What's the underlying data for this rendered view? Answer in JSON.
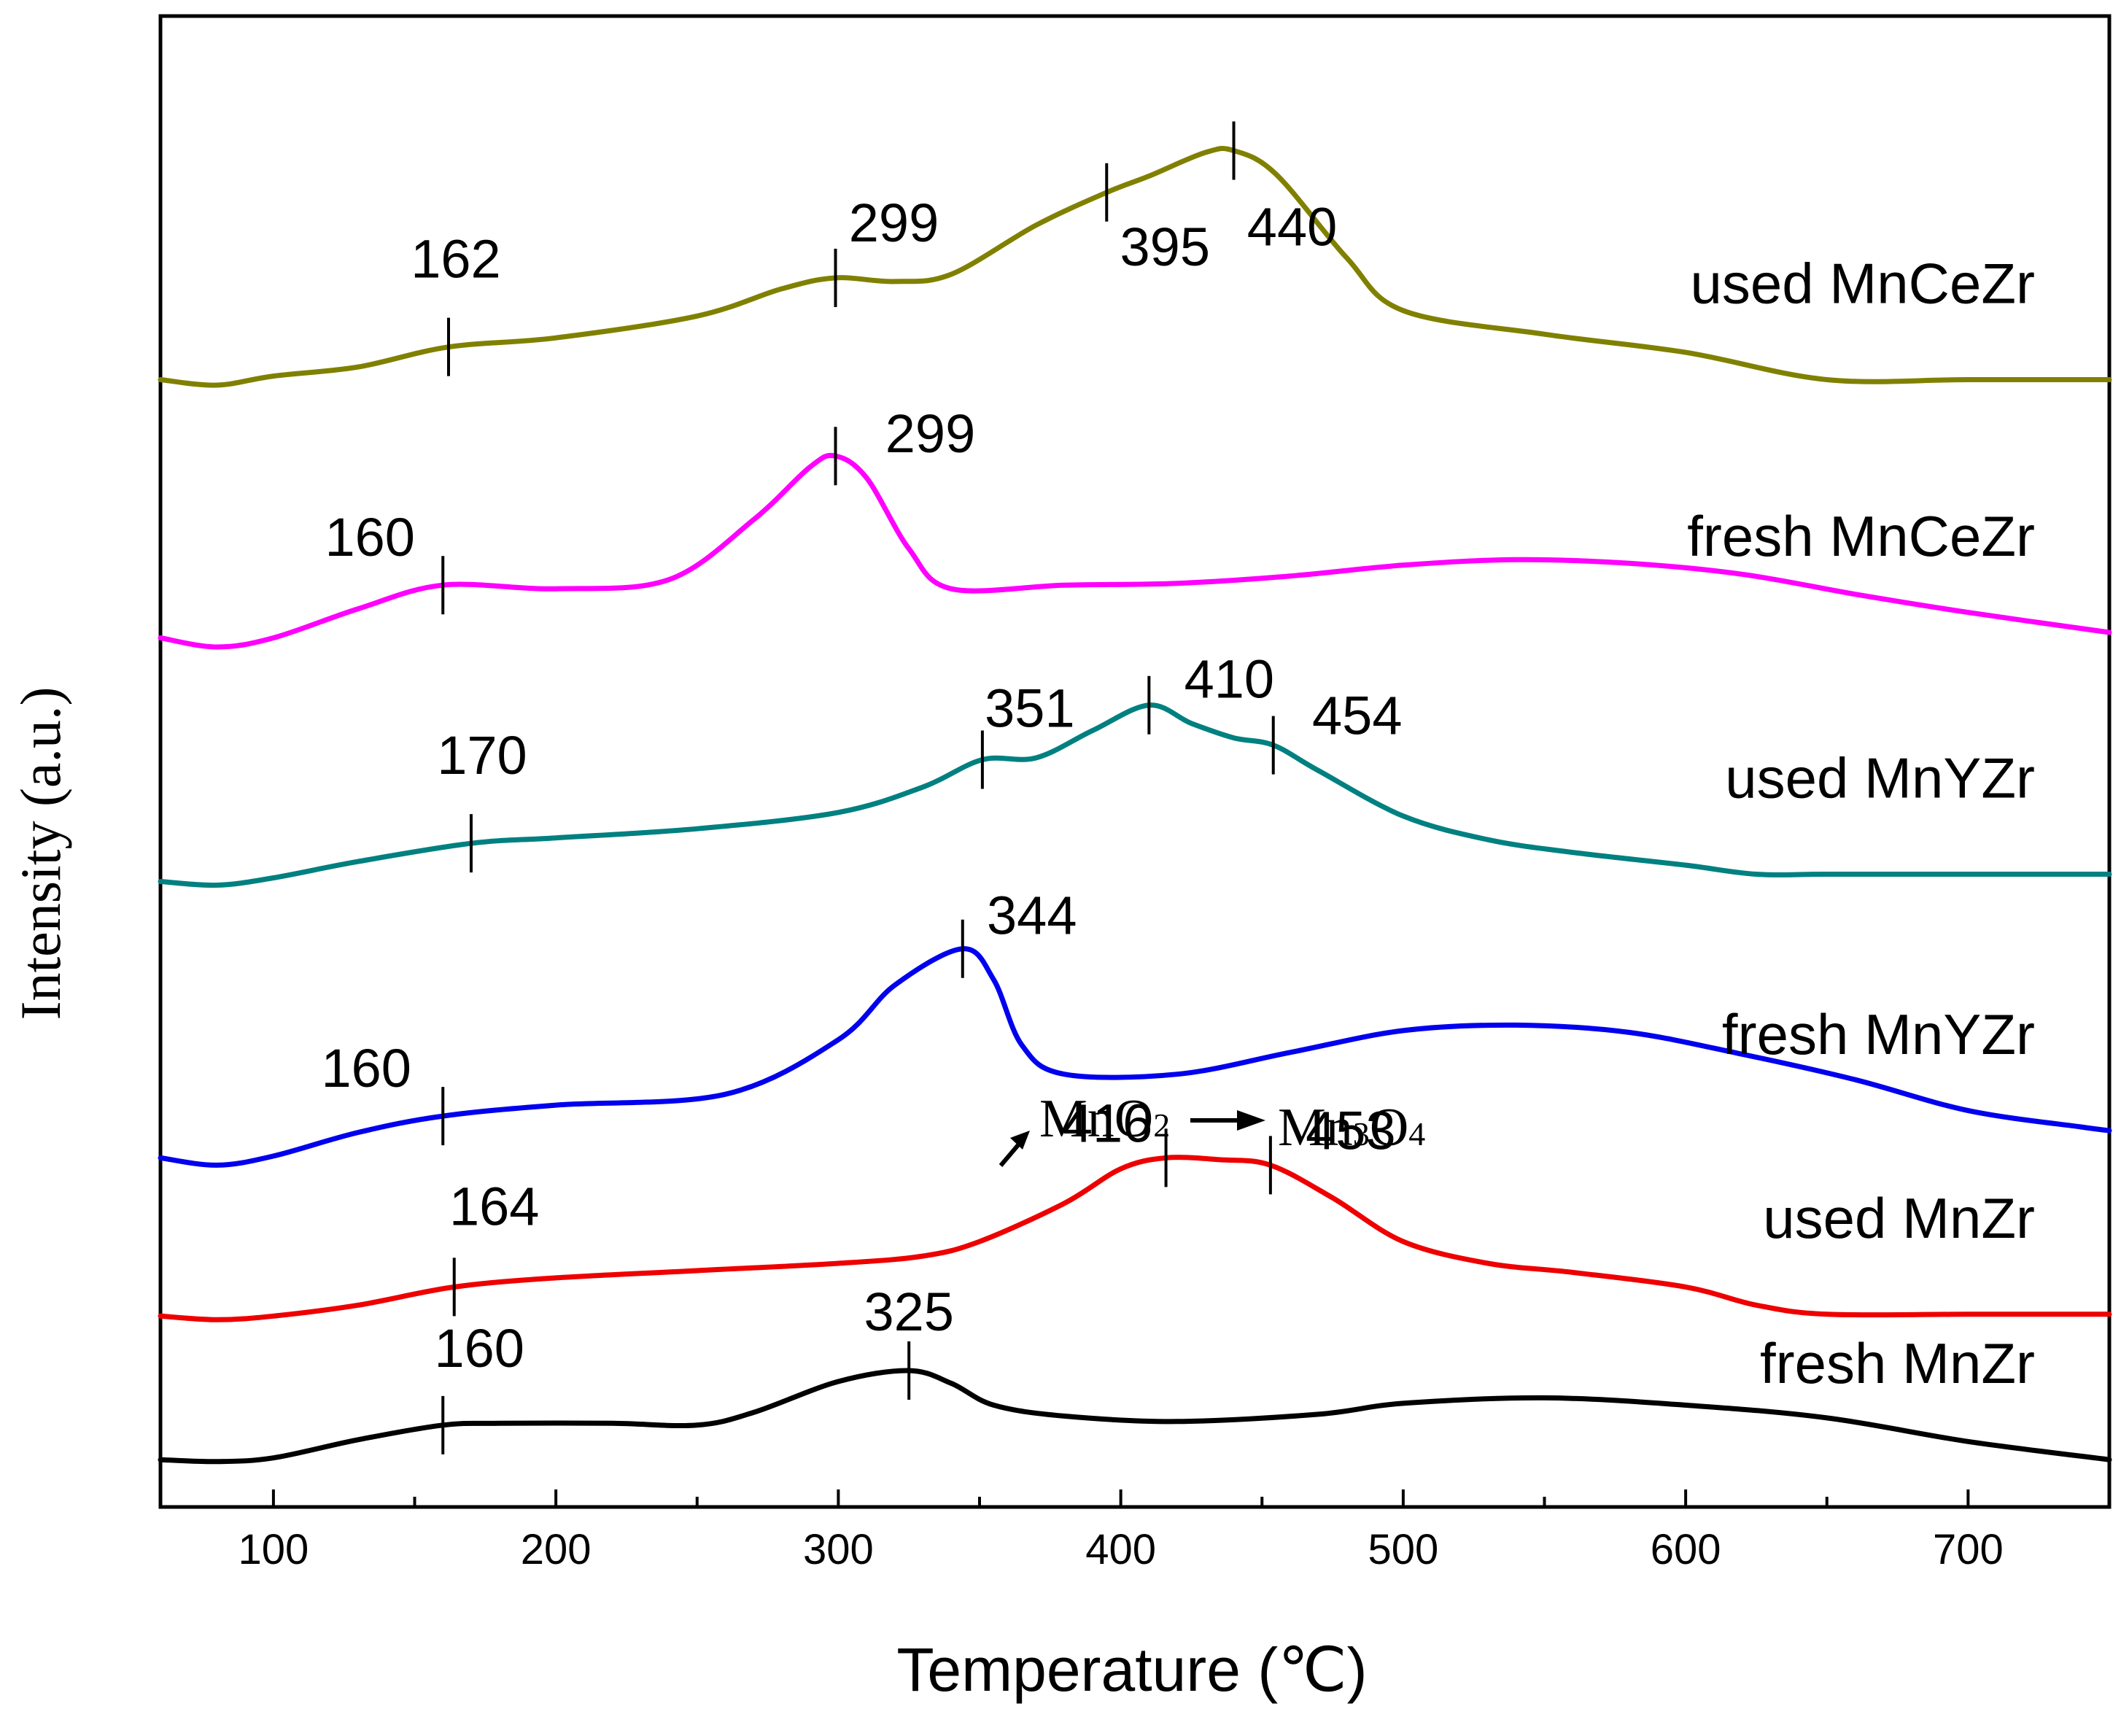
{
  "chart_data": {
    "type": "line",
    "title": "",
    "xlabel": "Temperature (℃)",
    "ylabel": "Intensity (a.u.)",
    "xlim": [
      60,
      750
    ],
    "x_ticks": [
      100,
      200,
      300,
      400,
      500,
      600,
      700
    ],
    "x_tick_labels": [
      "100",
      "200",
      "300",
      "400",
      "500",
      "600",
      "700"
    ],
    "y_ticks_shown": false,
    "grid": false,
    "legend": "labels placed at right end of each curve",
    "series": [
      {
        "name": "fresh MnZr",
        "color": "#000000",
        "x": [
          60,
          80,
          100,
          130,
          160,
          180,
          220,
          250,
          270,
          300,
          325,
          340,
          355,
          380,
          420,
          470,
          500,
          550,
          600,
          650,
          700,
          750
        ],
        "y": [
          2.6,
          2.5,
          2.7,
          3.7,
          4.5,
          4.6,
          4.6,
          4.5,
          5.2,
          6.9,
          7.5,
          6.8,
          5.6,
          5.0,
          4.7,
          5.1,
          5.7,
          6.0,
          5.6,
          4.9,
          3.6,
          2.6
        ],
        "peaks": [
          160,
          325
        ]
      },
      {
        "name": "used MnZr",
        "color": "#ee0000",
        "x": [
          60,
          80,
          100,
          130,
          164,
          200,
          250,
          300,
          330,
          350,
          380,
          400,
          416,
          435,
          453,
          475,
          500,
          530,
          560,
          600,
          625,
          650,
          700,
          750
        ],
        "y": [
          10.5,
          10.3,
          10.5,
          11.1,
          12.1,
          12.6,
          13.0,
          13.4,
          13.8,
          14.6,
          16.7,
          18.6,
          19.2,
          19.1,
          18.8,
          17.0,
          14.6,
          13.4,
          12.9,
          12.1,
          11.1,
          10.6,
          10.6,
          10.6
        ],
        "peaks": [
          164,
          416,
          453
        ]
      },
      {
        "name": "fresh MnYZr",
        "color": "#0000ee",
        "x": [
          60,
          80,
          100,
          130,
          160,
          200,
          260,
          300,
          320,
          344,
          355,
          365,
          380,
          420,
          460,
          500,
          540,
          580,
          620,
          660,
          700,
          740,
          750
        ],
        "y": [
          19.2,
          18.8,
          19.3,
          20.6,
          21.5,
          22.1,
          22.7,
          25.7,
          28.7,
          30.7,
          29.0,
          25.4,
          23.8,
          23.8,
          25.0,
          26.2,
          26.5,
          26.1,
          24.9,
          23.5,
          21.8,
          20.9,
          20.7
        ],
        "peaks": [
          160,
          344
        ]
      },
      {
        "name": "used MnYZr",
        "color": "#008080",
        "x": [
          60,
          80,
          100,
          130,
          170,
          200,
          250,
          300,
          330,
          351,
          370,
          390,
          410,
          425,
          440,
          454,
          470,
          500,
          530,
          560,
          600,
          625,
          650,
          700,
          750
        ],
        "y": [
          34.4,
          34.2,
          34.6,
          35.5,
          36.5,
          36.8,
          37.3,
          38.2,
          39.6,
          41.1,
          41.2,
          42.7,
          44.1,
          43.1,
          42.3,
          41.9,
          40.5,
          38.0,
          36.7,
          36.0,
          35.3,
          34.8,
          34.8,
          34.8,
          34.8
        ],
        "peaks": [
          170,
          351,
          410,
          454
        ]
      },
      {
        "name": "fresh MnCeZr",
        "color": "#ff00ff",
        "x": [
          60,
          80,
          100,
          130,
          160,
          200,
          240,
          270,
          290,
          299,
          310,
          325,
          340,
          380,
          420,
          460,
          500,
          540,
          580,
          620,
          660,
          700,
          750
        ],
        "y": [
          47.8,
          47.3,
          47.8,
          49.4,
          50.7,
          50.5,
          51.0,
          54.3,
          57.2,
          57.8,
          56.6,
          52.7,
          50.5,
          50.7,
          50.8,
          51.2,
          51.8,
          52.1,
          51.9,
          51.3,
          50.2,
          49.2,
          48.1
        ],
        "peaks": [
          160,
          299
        ]
      },
      {
        "name": "used MnCeZr",
        "color": "#808000",
        "x": [
          60,
          80,
          100,
          130,
          162,
          200,
          250,
          280,
          299,
          320,
          340,
          370,
          395,
          410,
          430,
          440,
          455,
          480,
          500,
          550,
          600,
          650,
          700,
          750
        ],
        "y": [
          62.0,
          61.7,
          62.2,
          62.7,
          63.8,
          64.3,
          65.5,
          67.0,
          67.6,
          67.4,
          67.8,
          70.5,
          72.3,
          73.2,
          74.5,
          74.6,
          73.3,
          68.7,
          65.8,
          64.5,
          63.5,
          62.0,
          62.0,
          62.0
        ],
        "peaks": [
          162,
          299,
          395,
          440
        ]
      }
    ],
    "peak_labels": [
      {
        "series": "fresh MnZr",
        "text": "160",
        "x": 160
      },
      {
        "series": "fresh MnZr",
        "text": "325",
        "x": 325
      },
      {
        "series": "used MnZr",
        "text": "164",
        "x": 164
      },
      {
        "series": "used MnZr",
        "text": "416",
        "x": 416
      },
      {
        "series": "used MnZr",
        "text": "453",
        "x": 453
      },
      {
        "series": "fresh MnYZr",
        "text": "160",
        "x": 160
      },
      {
        "series": "fresh MnYZr",
        "text": "344",
        "x": 344
      },
      {
        "series": "used MnYZr",
        "text": "170",
        "x": 170
      },
      {
        "series": "used MnYZr",
        "text": "351",
        "x": 351
      },
      {
        "series": "used MnYZr",
        "text": "410",
        "x": 410
      },
      {
        "series": "used MnYZr",
        "text": "454",
        "x": 454
      },
      {
        "series": "fresh MnCeZr",
        "text": "160",
        "x": 160
      },
      {
        "series": "fresh MnCeZr",
        "text": "299",
        "x": 299
      },
      {
        "series": "used MnCeZr",
        "text": "162",
        "x": 162
      },
      {
        "series": "used MnCeZr",
        "text": "299",
        "x": 299
      },
      {
        "series": "used MnCeZr",
        "text": "395",
        "x": 395
      },
      {
        "series": "used MnCeZr",
        "text": "440",
        "x": 440
      }
    ],
    "annotation": {
      "from_prefix": "MnO",
      "from_sub": "2",
      "to_prefix": "Mn",
      "to_sub1": "3",
      "to_mid": "O",
      "to_sub2": "4"
    }
  }
}
